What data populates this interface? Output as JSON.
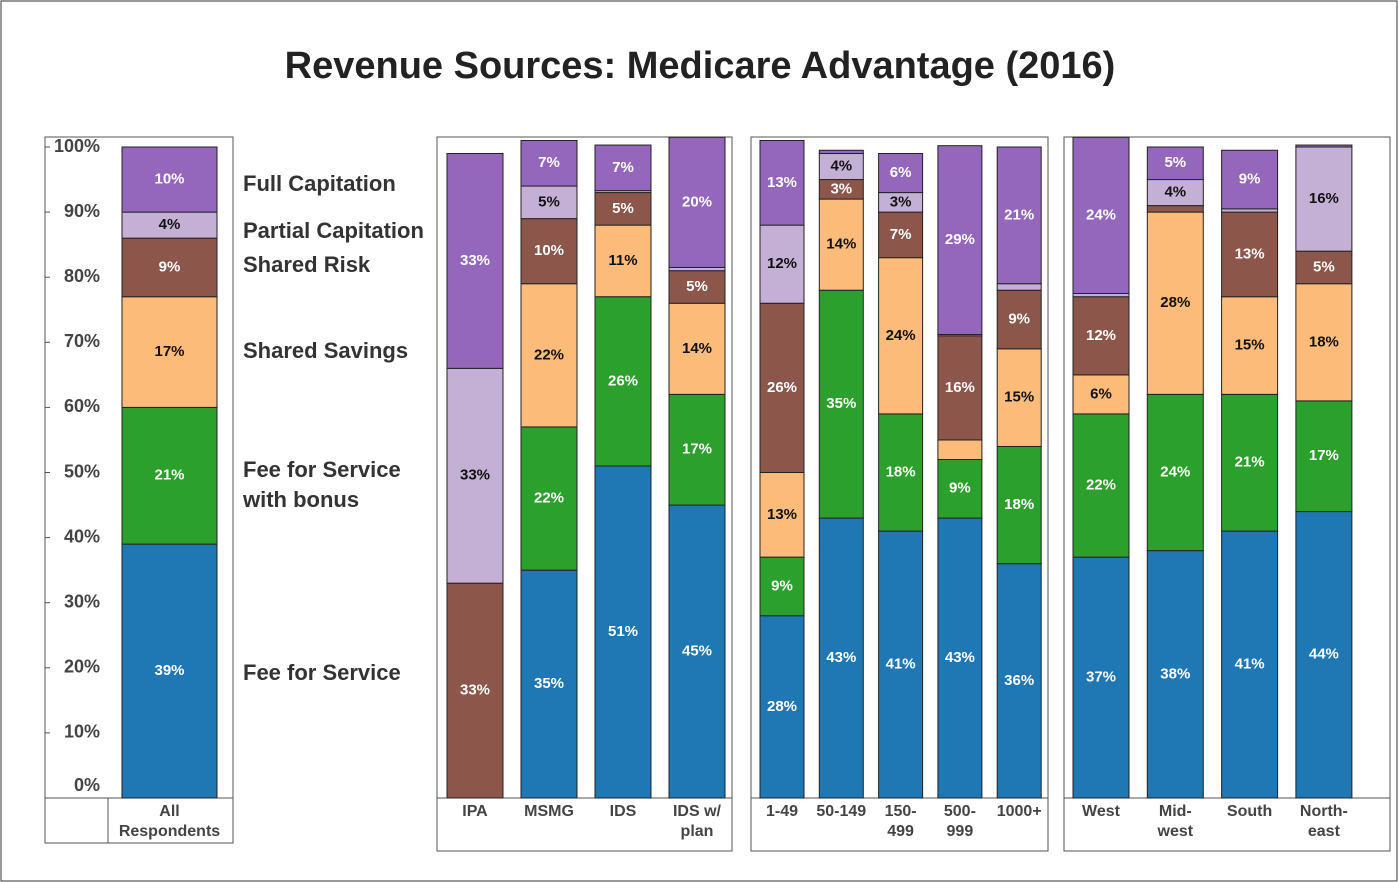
{
  "chart_data": {
    "type": "bar",
    "stacked": true,
    "title": "Revenue Sources: Medicare Advantage (2016)",
    "categories": [
      "All Respondents",
      "IPA",
      "MSMG",
      "IDS",
      "IDS w/ plan",
      "1-49",
      "50-149",
      "150-499",
      "500-999",
      "1000+",
      "West",
      "Mid-west",
      "South",
      "North-east"
    ],
    "ylim": [
      0,
      100
    ],
    "yticks": [
      {
        "value": 0,
        "label": "0%"
      },
      {
        "value": 10,
        "label": "10%"
      },
      {
        "value": 20,
        "label": "20%"
      },
      {
        "value": 30,
        "label": "30%"
      },
      {
        "value": 40,
        "label": "40%"
      },
      {
        "value": 50,
        "label": "50%"
      },
      {
        "value": 60,
        "label": "60%"
      },
      {
        "value": 70,
        "label": "70%"
      },
      {
        "value": 80,
        "label": "80%"
      },
      {
        "value": 90,
        "label": "90%"
      },
      {
        "value": 100,
        "label": "100%"
      }
    ],
    "series": [
      {
        "name": "Fee for Service",
        "color": "#1f77b4",
        "values": [
          39,
          0,
          35,
          51,
          45,
          28,
          43,
          41,
          43,
          36,
          37,
          38,
          41,
          44
        ],
        "value_labels": [
          "39%",
          null,
          "35%",
          "51%",
          "45%",
          "28%",
          "43%",
          "41%",
          "43%",
          "36%",
          "37%",
          "38%",
          "41%",
          "44%"
        ]
      },
      {
        "name": "Fee for Service with bonus",
        "color": "#2ca02c",
        "values": [
          21,
          0,
          22,
          26,
          17,
          9,
          35,
          18,
          9,
          18,
          22,
          24,
          21,
          17
        ],
        "value_labels": [
          "21%",
          null,
          "22%",
          "26%",
          "17%",
          "9%",
          "35%",
          "18%",
          "9%",
          "18%",
          "22%",
          "24%",
          "21%",
          "17%"
        ]
      },
      {
        "name": "Shared Savings",
        "color": "#fdbb7a",
        "values": [
          17,
          0,
          22,
          11,
          14,
          13,
          14,
          24,
          3,
          15,
          6,
          28,
          15,
          18
        ],
        "value_labels": [
          "17%",
          null,
          "22%",
          "11%",
          "14%",
          "13%",
          "14%",
          "24%",
          null,
          "15%",
          "6%",
          "28%",
          "15%",
          "18%"
        ]
      },
      {
        "name": "Shared Risk",
        "color": "#8c564b",
        "values": [
          9,
          33,
          10,
          5,
          5,
          26,
          3,
          7,
          16,
          9,
          12,
          1,
          13,
          5
        ],
        "value_labels": [
          "9%",
          "33%",
          "10%",
          "5%",
          "5%",
          "26%",
          "3%",
          "7%",
          "16%",
          "9%",
          "12%",
          null,
          "13%",
          "5%"
        ]
      },
      {
        "name": "Partial Capitation",
        "color": "#c5b0d5",
        "values": [
          4,
          33,
          5,
          0.3,
          0.5,
          12,
          4,
          3,
          0.2,
          1,
          0.5,
          4,
          0.5,
          16
        ],
        "value_labels": [
          "4%",
          "33%",
          "5%",
          null,
          null,
          "12%",
          "4%",
          "3%",
          null,
          null,
          null,
          "4%",
          null,
          "16%"
        ]
      },
      {
        "name": "Full Capitation",
        "color": "#9467bd",
        "values": [
          10,
          33,
          7,
          7,
          20,
          13,
          0.5,
          6,
          29,
          21,
          24,
          5,
          9,
          0.3
        ],
        "value_labels": [
          "10%",
          "33%",
          "7%",
          "7%",
          "20%",
          "13%",
          null,
          "6%",
          "29%",
          "21%",
          "24%",
          "5%",
          "9%",
          null
        ]
      }
    ]
  }
}
